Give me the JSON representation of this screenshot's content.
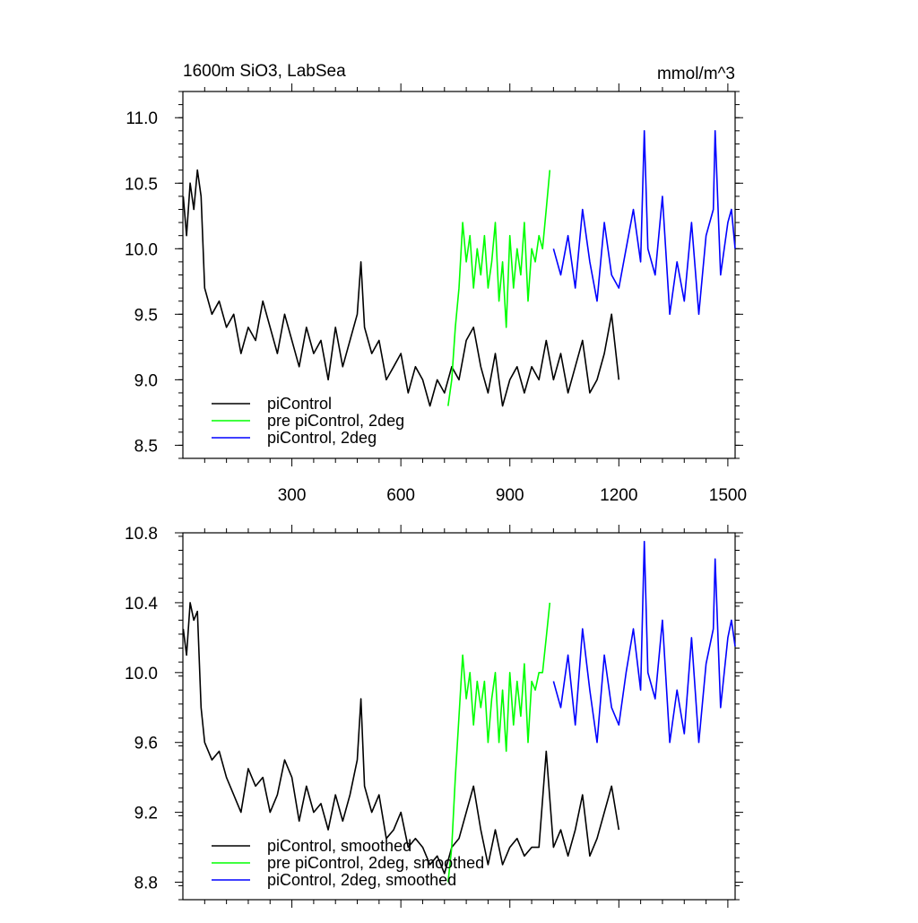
{
  "chart_data": [
    {
      "type": "line",
      "title": "1600m SiO3, LabSea",
      "units_label": "mmol/m^3",
      "xlim": [
        0,
        1520
      ],
      "ylim": [
        8.4,
        11.2
      ],
      "xticks": [
        300,
        600,
        900,
        1200,
        1500
      ],
      "yticks": [
        8.5,
        9.0,
        9.5,
        10.0,
        10.5,
        11.0
      ],
      "grid": false,
      "legend_position": "bottom-left",
      "series": [
        {
          "name": "piControl",
          "color": "#000000",
          "x": [
            1,
            10,
            20,
            30,
            40,
            50,
            60,
            80,
            100,
            120,
            140,
            160,
            180,
            200,
            220,
            240,
            260,
            280,
            300,
            320,
            340,
            360,
            380,
            400,
            420,
            440,
            460,
            480,
            490,
            500,
            520,
            540,
            560,
            580,
            600,
            620,
            640,
            660,
            680,
            700,
            720,
            740,
            760,
            780,
            800,
            820,
            840,
            860,
            880,
            900,
            920,
            940,
            960,
            980,
            1000,
            1020,
            1040,
            1060,
            1080,
            1100,
            1120,
            1140,
            1160,
            1180,
            1200
          ],
          "y": [
            10.4,
            10.1,
            10.5,
            10.3,
            10.6,
            10.4,
            9.7,
            9.5,
            9.6,
            9.4,
            9.5,
            9.2,
            9.4,
            9.3,
            9.6,
            9.4,
            9.2,
            9.5,
            9.3,
            9.1,
            9.4,
            9.2,
            9.3,
            9.0,
            9.4,
            9.1,
            9.3,
            9.5,
            9.9,
            9.4,
            9.2,
            9.3,
            9.0,
            9.1,
            9.2,
            8.9,
            9.1,
            9.0,
            8.8,
            9.0,
            8.9,
            9.1,
            9.0,
            9.3,
            9.4,
            9.1,
            8.9,
            9.2,
            8.8,
            9.0,
            9.1,
            8.9,
            9.1,
            9.0,
            9.3,
            9.0,
            9.2,
            8.9,
            9.1,
            9.3,
            8.9,
            9.0,
            9.2,
            9.5,
            9.0
          ]
        },
        {
          "name": "pre piControl, 2deg",
          "color": "#00ff00",
          "x": [
            730,
            740,
            750,
            760,
            770,
            780,
            790,
            800,
            810,
            820,
            830,
            840,
            850,
            860,
            870,
            880,
            890,
            900,
            910,
            920,
            930,
            940,
            950,
            960,
            970,
            980,
            990,
            1000,
            1010
          ],
          "y": [
            8.8,
            9.0,
            9.4,
            9.7,
            10.2,
            9.9,
            10.1,
            9.7,
            10.0,
            9.8,
            10.1,
            9.7,
            9.9,
            10.2,
            9.6,
            9.9,
            9.4,
            10.1,
            9.7,
            10.0,
            9.8,
            10.2,
            9.6,
            10.0,
            9.9,
            10.1,
            10.0,
            10.3,
            10.6
          ]
        },
        {
          "name": "piControl, 2deg",
          "color": "#0000ff",
          "x": [
            1020,
            1040,
            1060,
            1080,
            1100,
            1120,
            1140,
            1160,
            1180,
            1200,
            1220,
            1240,
            1260,
            1270,
            1280,
            1300,
            1320,
            1340,
            1360,
            1380,
            1400,
            1420,
            1440,
            1460,
            1465,
            1480,
            1500,
            1510,
            1520
          ],
          "y": [
            10.0,
            9.8,
            10.1,
            9.7,
            10.3,
            9.9,
            9.6,
            10.2,
            9.8,
            9.7,
            10.0,
            10.3,
            9.9,
            10.9,
            10.0,
            9.8,
            10.4,
            9.5,
            9.9,
            9.6,
            10.2,
            9.5,
            10.1,
            10.3,
            10.9,
            9.8,
            10.2,
            10.3,
            10.0
          ]
        }
      ]
    },
    {
      "type": "line",
      "xlim": [
        0,
        1520
      ],
      "ylim": [
        8.7,
        10.8
      ],
      "xticks": [
        300,
        600,
        900,
        1200,
        1500
      ],
      "yticks": [
        8.8,
        9.2,
        9.6,
        10.0,
        10.4,
        10.8
      ],
      "grid": false,
      "legend_position": "bottom-left",
      "series": [
        {
          "name": "piControl, smoothed",
          "color": "#000000",
          "x": [
            1,
            10,
            20,
            30,
            40,
            50,
            60,
            80,
            100,
            120,
            140,
            160,
            180,
            200,
            220,
            240,
            260,
            280,
            300,
            320,
            340,
            360,
            380,
            400,
            420,
            440,
            460,
            480,
            490,
            500,
            520,
            540,
            560,
            580,
            600,
            620,
            640,
            660,
            680,
            700,
            720,
            740,
            760,
            780,
            800,
            820,
            840,
            860,
            880,
            900,
            920,
            940,
            960,
            980,
            1000,
            1020,
            1040,
            1060,
            1080,
            1100,
            1120,
            1140,
            1160,
            1180,
            1200
          ],
          "y": [
            10.25,
            10.1,
            10.4,
            10.3,
            10.35,
            9.8,
            9.6,
            9.5,
            9.55,
            9.4,
            9.3,
            9.2,
            9.45,
            9.35,
            9.4,
            9.2,
            9.3,
            9.5,
            9.4,
            9.15,
            9.35,
            9.2,
            9.25,
            9.1,
            9.3,
            9.15,
            9.3,
            9.5,
            9.85,
            9.35,
            9.2,
            9.3,
            9.05,
            9.1,
            9.2,
            9.0,
            9.05,
            9.0,
            8.9,
            8.95,
            8.85,
            9.0,
            9.05,
            9.2,
            9.35,
            9.1,
            8.9,
            9.1,
            8.9,
            9.0,
            9.05,
            8.95,
            9.0,
            9.0,
            9.55,
            9.0,
            9.1,
            8.95,
            9.1,
            9.3,
            8.95,
            9.05,
            9.2,
            9.35,
            9.1
          ]
        },
        {
          "name": "pre piControl, 2deg, smoothed",
          "color": "#00ff00",
          "x": [
            730,
            740,
            750,
            760,
            770,
            780,
            790,
            800,
            810,
            820,
            830,
            840,
            850,
            860,
            870,
            880,
            890,
            900,
            910,
            920,
            930,
            940,
            950,
            960,
            970,
            980,
            990,
            1000,
            1010
          ],
          "y": [
            8.8,
            9.0,
            9.4,
            9.75,
            10.1,
            9.85,
            10.0,
            9.7,
            9.95,
            9.8,
            9.95,
            9.6,
            9.85,
            10.0,
            9.6,
            9.9,
            9.55,
            10.0,
            9.7,
            9.95,
            9.75,
            10.05,
            9.6,
            9.95,
            9.9,
            10.0,
            10.0,
            10.2,
            10.4
          ]
        },
        {
          "name": "piControl, 2deg, smoothed",
          "color": "#0000ff",
          "x": [
            1020,
            1040,
            1060,
            1080,
            1100,
            1120,
            1140,
            1160,
            1180,
            1200,
            1220,
            1240,
            1260,
            1270,
            1280,
            1300,
            1320,
            1340,
            1360,
            1380,
            1400,
            1420,
            1440,
            1460,
            1465,
            1480,
            1500,
            1510,
            1520
          ],
          "y": [
            9.95,
            9.8,
            10.1,
            9.7,
            10.25,
            9.9,
            9.6,
            10.1,
            9.8,
            9.7,
            10.0,
            10.25,
            9.9,
            10.75,
            10.0,
            9.85,
            10.3,
            9.6,
            9.9,
            9.65,
            10.2,
            9.6,
            10.05,
            10.25,
            10.65,
            9.8,
            10.2,
            10.3,
            10.15
          ]
        }
      ]
    }
  ]
}
